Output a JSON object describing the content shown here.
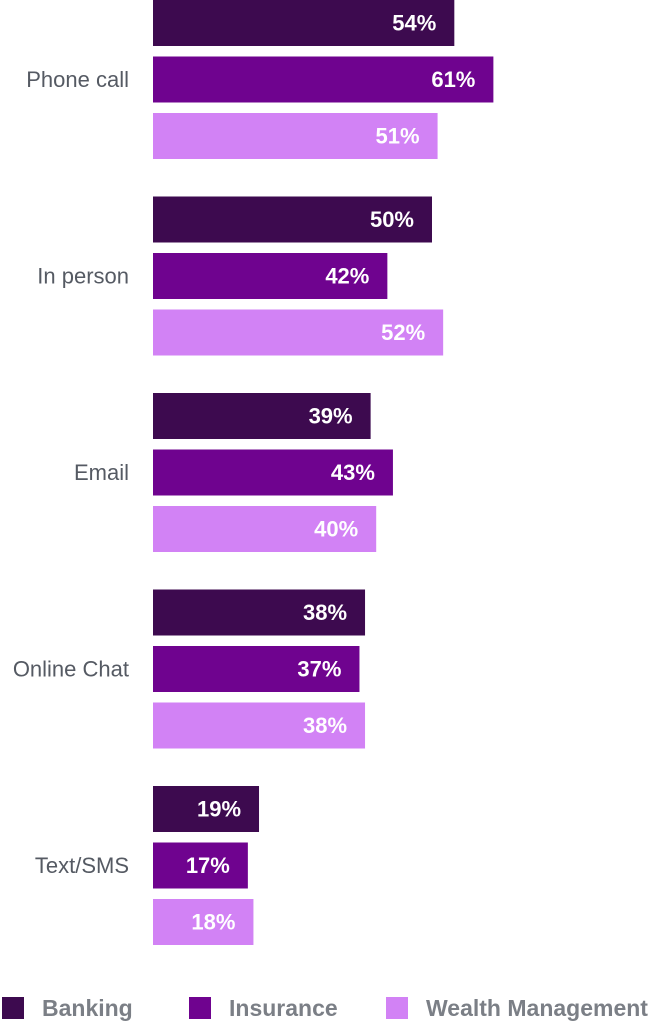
{
  "chart_data": {
    "type": "bar",
    "orientation": "horizontal",
    "categories": [
      "Phone call",
      "In person",
      "Email",
      "Online Chat",
      "Text/SMS"
    ],
    "series": [
      {
        "name": "Banking",
        "values": [
          54,
          50,
          39,
          38,
          19
        ],
        "labels": [
          "54%",
          "50%",
          "39%",
          "38%",
          "19%"
        ],
        "color": "#3d0a4f"
      },
      {
        "name": "Insurance",
        "values": [
          61,
          42,
          43,
          37,
          17
        ],
        "labels": [
          "61%",
          "42%",
          "43%",
          "37%",
          "17%"
        ],
        "color": "#6f038f"
      },
      {
        "name": "Wealth Management",
        "values": [
          51,
          52,
          40,
          38,
          18
        ],
        "labels": [
          "51%",
          "52%",
          "40%",
          "38%",
          "18%"
        ],
        "color": "#d282f5"
      }
    ],
    "unit": "%",
    "legend_position": "bottom",
    "grid": false
  }
}
